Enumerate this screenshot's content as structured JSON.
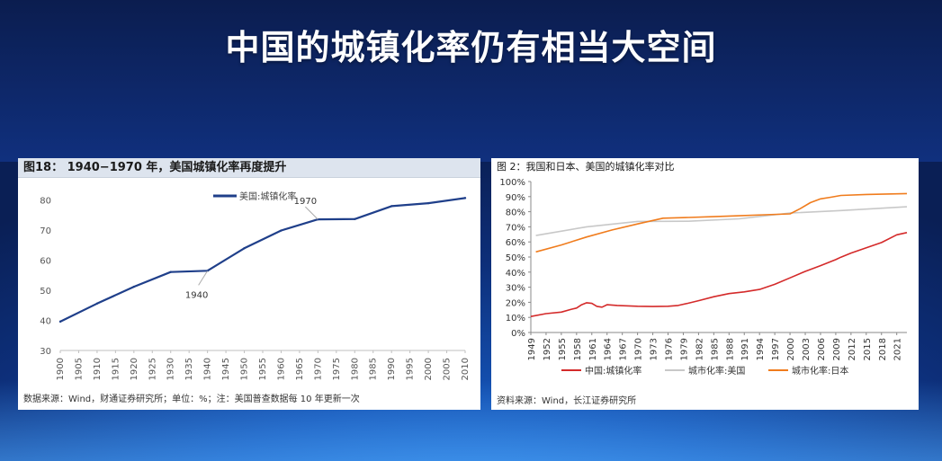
{
  "slide": {
    "title": "中国的城镇化率仍有相当大空间"
  },
  "left_panel": {
    "caption": "图18：   1940−1970 年，美国城镇化率再度提升",
    "source": "数据来源：Wind，财通证券研究所；单位：%；注：美国普查数据每 10 年更新一次"
  },
  "right_panel": {
    "caption": "图 2：我国和日本、美国的城镇化率对比",
    "source": "资料来源：Wind，长江证券研究所"
  },
  "chart_data": [
    {
      "type": "line",
      "title": "",
      "xlabel": "",
      "ylabel": "",
      "x": [
        1900,
        1910,
        1920,
        1930,
        1940,
        1950,
        1960,
        1970,
        1980,
        1990,
        2000,
        2010
      ],
      "x_ticks": [
        "1900",
        "1905",
        "1910",
        "1915",
        "1920",
        "1925",
        "1930",
        "1935",
        "1940",
        "1945",
        "1950",
        "1955",
        "1960",
        "1965",
        "1970",
        "1975",
        "1980",
        "1985",
        "1990",
        "1995",
        "2000",
        "2005",
        "2010"
      ],
      "y_ticks": [
        "30",
        "40",
        "50",
        "60",
        "70",
        "80"
      ],
      "ylim": [
        30,
        85
      ],
      "series": [
        {
          "name": "美国:城镇化率",
          "color": "#1f3f8a",
          "values": [
            39.6,
            45.6,
            51.2,
            56.1,
            56.5,
            64.0,
            69.9,
            73.6,
            73.7,
            78.0,
            79.0,
            80.7
          ]
        }
      ],
      "annotations": [
        {
          "label": "1940",
          "x": 1940,
          "y": 56.5
        },
        {
          "label": "1970",
          "x": 1970,
          "y": 73.6
        }
      ]
    },
    {
      "type": "line",
      "title": "",
      "xlabel": "",
      "ylabel": "",
      "xlim": [
        1949,
        2023
      ],
      "x_ticks": [
        "1949",
        "1952",
        "1955",
        "1958",
        "1961",
        "1964",
        "1967",
        "1970",
        "1973",
        "1976",
        "1979",
        "1982",
        "1985",
        "1988",
        "1991",
        "1994",
        "1997",
        "2000",
        "2003",
        "2006",
        "2009",
        "2012",
        "2015",
        "2018",
        "2021"
      ],
      "y_ticks": [
        "0%",
        "10%",
        "20%",
        "30%",
        "40%",
        "50%",
        "60%",
        "70%",
        "80%",
        "90%",
        "100%"
      ],
      "ylim": [
        0,
        100
      ],
      "series": [
        {
          "name": "中国:城镇化率",
          "color": "#d42a2a",
          "x": [
            1949,
            1952,
            1955,
            1957,
            1958,
            1959,
            1960,
            1961,
            1962,
            1963,
            1964,
            1966,
            1970,
            1973,
            1976,
            1978,
            1980,
            1982,
            1985,
            1988,
            1991,
            1994,
            1997,
            2000,
            2003,
            2006,
            2009,
            2010,
            2012,
            2015,
            2018,
            2021,
            2023
          ],
          "values": [
            10.6,
            12.5,
            13.5,
            15.4,
            16.2,
            18.4,
            19.7,
            19.3,
            17.3,
            16.8,
            18.4,
            17.9,
            17.4,
            17.2,
            17.4,
            17.9,
            19.4,
            21.1,
            23.7,
            25.8,
            26.9,
            28.5,
            31.9,
            36.2,
            40.5,
            44.3,
            48.3,
            49.9,
            52.6,
            56.1,
            59.6,
            64.7,
            66.2
          ]
        },
        {
          "name": "城市化率:美国",
          "color": "#c8c8c8",
          "x": [
            1950,
            1960,
            1970,
            1980,
            1990,
            2000,
            2010,
            2023
          ],
          "values": [
            64.2,
            70.0,
            73.6,
            73.7,
            75.3,
            79.1,
            80.8,
            83.3
          ]
        },
        {
          "name": "城市化率:日本",
          "color": "#f07c1d",
          "x": [
            1950,
            1955,
            1960,
            1965,
            1970,
            1975,
            1980,
            1985,
            1990,
            1995,
            2000,
            2002,
            2004,
            2006,
            2008,
            2010,
            2015,
            2020,
            2023
          ],
          "values": [
            53.4,
            58.0,
            63.3,
            67.9,
            71.9,
            75.7,
            76.2,
            76.7,
            77.3,
            78.0,
            78.6,
            82.0,
            86.0,
            88.5,
            89.6,
            90.8,
            91.4,
            91.8,
            92.0
          ]
        }
      ]
    }
  ]
}
